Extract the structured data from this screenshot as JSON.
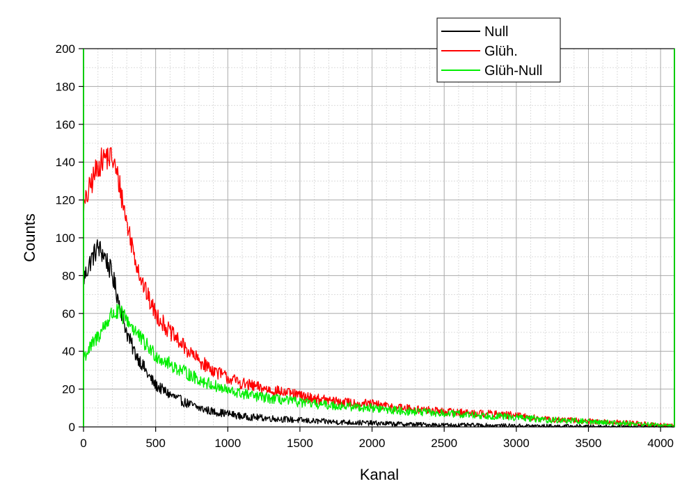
{
  "chart_data": {
    "type": "line",
    "xlabel": "Kanal",
    "ylabel": "Counts",
    "xlim": [
      0,
      4096
    ],
    "ylim": [
      0,
      200
    ],
    "xticks": [
      0,
      500,
      1000,
      1500,
      2000,
      2500,
      3000,
      3500,
      4000
    ],
    "yticks": [
      0,
      20,
      40,
      60,
      80,
      100,
      120,
      140,
      160,
      180,
      200
    ],
    "grid": true,
    "legend": "top-right",
    "series": [
      {
        "name": "Null",
        "color": "#000000",
        "x": [
          0,
          50,
          100,
          150,
          200,
          250,
          300,
          350,
          400,
          450,
          500,
          600,
          700,
          800,
          900,
          1000,
          1100,
          1200,
          1400,
          1600,
          1800,
          2000,
          2200,
          2500,
          2800,
          3000,
          3500,
          4000,
          4096
        ],
        "y": [
          78,
          88,
          95,
          90,
          80,
          65,
          50,
          40,
          34,
          27,
          22,
          17,
          13,
          10,
          8,
          7,
          5.5,
          5,
          4,
          3,
          2.5,
          2,
          1.5,
          1,
          0.8,
          0.6,
          0.3,
          0.2,
          0.1
        ]
      },
      {
        "name": "Glüh.",
        "color": "#ff0000",
        "x": [
          0,
          50,
          100,
          150,
          200,
          250,
          300,
          350,
          400,
          450,
          500,
          600,
          700,
          800,
          900,
          1000,
          1100,
          1200,
          1400,
          1600,
          1800,
          2000,
          2200,
          2500,
          2800,
          3000,
          3200,
          3500,
          3800,
          4000,
          4096
        ],
        "y": [
          115,
          128,
          138,
          143,
          142,
          128,
          108,
          92,
          78,
          68,
          60,
          50,
          42,
          35,
          30,
          26,
          23,
          21,
          18,
          15,
          13,
          12,
          10,
          8,
          7,
          6,
          4,
          3,
          2,
          1,
          0.5
        ]
      },
      {
        "name": "Glüh-Null",
        "color": "#00ee00",
        "x": [
          0,
          50,
          100,
          150,
          200,
          250,
          300,
          350,
          400,
          450,
          500,
          600,
          700,
          800,
          900,
          1000,
          1100,
          1200,
          1400,
          1600,
          1800,
          2000,
          2200,
          2500,
          2800,
          3000,
          3200,
          3500,
          3800,
          4000,
          4096
        ],
        "y": [
          37,
          42,
          48,
          54,
          60,
          60,
          57,
          52,
          46,
          42,
          38,
          33,
          29,
          25,
          22,
          19,
          17.5,
          16,
          14,
          12,
          11,
          10,
          8.5,
          7,
          6,
          5,
          3.8,
          2.8,
          1.8,
          0.9,
          0.4
        ]
      }
    ]
  }
}
